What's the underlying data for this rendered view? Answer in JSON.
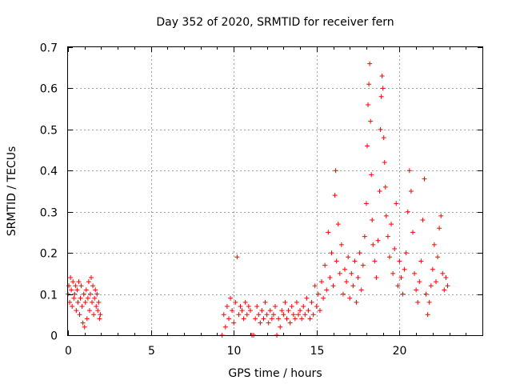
{
  "chart_data": {
    "type": "scatter",
    "title": "Day 352 of 2020, SRMTID for receiver fern",
    "xlabel": "GPS time / hours",
    "ylabel": "SRMTID / TECUs",
    "xlim": [
      0,
      25
    ],
    "ylim": [
      0,
      0.7
    ],
    "xticks": [
      "0",
      "5",
      "10",
      "15",
      "20"
    ],
    "xtick_values": [
      0,
      5,
      10,
      15,
      20
    ],
    "yticks": [
      "0",
      "0.1",
      "0.2",
      "0.3",
      "0.4",
      "0.5",
      "0.6",
      "0.7"
    ],
    "ytick_values": [
      0,
      0.1,
      0.2,
      0.3,
      0.4,
      0.5,
      0.6,
      0.7
    ],
    "grid": true,
    "marker": "+",
    "series": [
      {
        "name": "SRMTID",
        "color": "#ff0000",
        "points": [
          [
            0.0,
            0.1
          ],
          [
            0.05,
            0.12
          ],
          [
            0.1,
            0.08
          ],
          [
            0.15,
            0.14
          ],
          [
            0.2,
            0.11
          ],
          [
            0.25,
            0.07
          ],
          [
            0.3,
            0.13
          ],
          [
            0.35,
            0.09
          ],
          [
            0.4,
            0.1
          ],
          [
            0.45,
            0.12
          ],
          [
            0.5,
            0.06
          ],
          [
            0.55,
            0.11
          ],
          [
            0.6,
            0.08
          ],
          [
            0.65,
            0.13
          ],
          [
            0.7,
            0.05
          ],
          [
            0.75,
            0.09
          ],
          [
            0.8,
            0.12
          ],
          [
            0.85,
            0.07
          ],
          [
            0.9,
            0.03
          ],
          [
            0.95,
            0.1
          ],
          [
            1.0,
            0.02
          ],
          [
            1.05,
            0.08
          ],
          [
            1.1,
            0.11
          ],
          [
            1.15,
            0.04
          ],
          [
            1.2,
            0.09
          ],
          [
            1.25,
            0.13
          ],
          [
            1.3,
            0.06
          ],
          [
            1.35,
            0.1
          ],
          [
            1.4,
            0.14
          ],
          [
            1.45,
            0.08
          ],
          [
            1.5,
            0.12
          ],
          [
            1.55,
            0.05
          ],
          [
            1.6,
            0.09
          ],
          [
            1.65,
            0.11
          ],
          [
            1.7,
            0.07
          ],
          [
            1.75,
            0.1
          ],
          [
            1.8,
            0.06
          ],
          [
            1.85,
            0.08
          ],
          [
            1.9,
            0.04
          ],
          [
            1.95,
            0.05
          ],
          [
            9.3,
            0.0
          ],
          [
            9.4,
            0.05
          ],
          [
            9.5,
            0.02
          ],
          [
            9.6,
            0.07
          ],
          [
            9.7,
            0.04
          ],
          [
            9.8,
            0.09
          ],
          [
            9.9,
            0.06
          ],
          [
            10.0,
            0.03
          ],
          [
            10.1,
            0.08
          ],
          [
            10.2,
            0.19
          ],
          [
            10.3,
            0.05
          ],
          [
            10.4,
            0.07
          ],
          [
            10.5,
            0.06
          ],
          [
            10.6,
            0.04
          ],
          [
            10.7,
            0.08
          ],
          [
            10.8,
            0.05
          ],
          [
            10.9,
            0.07
          ],
          [
            11.0,
            0.06
          ],
          [
            11.1,
            0.0
          ],
          [
            11.2,
            0.0
          ],
          [
            11.3,
            0.04
          ],
          [
            11.4,
            0.07
          ],
          [
            11.5,
            0.05
          ],
          [
            11.6,
            0.03
          ],
          [
            11.7,
            0.06
          ],
          [
            11.8,
            0.04
          ],
          [
            11.9,
            0.08
          ],
          [
            12.0,
            0.05
          ],
          [
            12.1,
            0.03
          ],
          [
            12.2,
            0.06
          ],
          [
            12.3,
            0.04
          ],
          [
            12.4,
            0.05
          ],
          [
            12.5,
            0.07
          ],
          [
            12.6,
            0.0
          ],
          [
            12.7,
            0.04
          ],
          [
            12.8,
            0.02
          ],
          [
            12.9,
            0.06
          ],
          [
            13.0,
            0.05
          ],
          [
            13.1,
            0.08
          ],
          [
            13.2,
            0.04
          ],
          [
            13.3,
            0.06
          ],
          [
            13.4,
            0.03
          ],
          [
            13.5,
            0.07
          ],
          [
            13.6,
            0.05
          ],
          [
            13.7,
            0.04
          ],
          [
            13.8,
            0.08
          ],
          [
            13.9,
            0.05
          ],
          [
            14.0,
            0.06
          ],
          [
            14.1,
            0.04
          ],
          [
            14.2,
            0.07
          ],
          [
            14.3,
            0.05
          ],
          [
            14.4,
            0.09
          ],
          [
            14.5,
            0.06
          ],
          [
            14.6,
            0.04
          ],
          [
            14.7,
            0.08
          ],
          [
            14.8,
            0.05
          ],
          [
            14.9,
            0.12
          ],
          [
            15.0,
            0.07
          ],
          [
            15.1,
            0.1
          ],
          [
            15.2,
            0.06
          ],
          [
            15.3,
            0.13
          ],
          [
            15.4,
            0.09
          ],
          [
            15.5,
            0.17
          ],
          [
            15.6,
            0.11
          ],
          [
            15.7,
            0.25
          ],
          [
            15.8,
            0.14
          ],
          [
            15.9,
            0.2
          ],
          [
            16.0,
            0.12
          ],
          [
            16.1,
            0.34
          ],
          [
            16.15,
            0.4
          ],
          [
            16.2,
            0.18
          ],
          [
            16.3,
            0.27
          ],
          [
            16.4,
            0.15
          ],
          [
            16.5,
            0.22
          ],
          [
            16.6,
            0.1
          ],
          [
            16.7,
            0.16
          ],
          [
            16.8,
            0.13
          ],
          [
            16.9,
            0.19
          ],
          [
            17.0,
            0.09
          ],
          [
            17.1,
            0.15
          ],
          [
            17.2,
            0.12
          ],
          [
            17.3,
            0.18
          ],
          [
            17.4,
            0.08
          ],
          [
            17.5,
            0.14
          ],
          [
            17.6,
            0.2
          ],
          [
            17.7,
            0.11
          ],
          [
            17.8,
            0.17
          ],
          [
            17.9,
            0.24
          ],
          [
            18.0,
            0.32
          ],
          [
            18.05,
            0.46
          ],
          [
            18.1,
            0.56
          ],
          [
            18.15,
            0.61
          ],
          [
            18.2,
            0.66
          ],
          [
            18.25,
            0.52
          ],
          [
            18.3,
            0.39
          ],
          [
            18.35,
            0.28
          ],
          [
            18.4,
            0.22
          ],
          [
            18.5,
            0.18
          ],
          [
            18.6,
            0.14
          ],
          [
            18.7,
            0.23
          ],
          [
            18.8,
            0.35
          ],
          [
            18.85,
            0.5
          ],
          [
            18.9,
            0.58
          ],
          [
            18.95,
            0.63
          ],
          [
            19.0,
            0.6
          ],
          [
            19.05,
            0.48
          ],
          [
            19.1,
            0.42
          ],
          [
            19.15,
            0.36
          ],
          [
            19.2,
            0.29
          ],
          [
            19.3,
            0.24
          ],
          [
            19.4,
            0.19
          ],
          [
            19.5,
            0.27
          ],
          [
            19.6,
            0.15
          ],
          [
            19.7,
            0.21
          ],
          [
            19.8,
            0.32
          ],
          [
            19.9,
            0.12
          ],
          [
            20.0,
            0.18
          ],
          [
            20.1,
            0.14
          ],
          [
            20.2,
            0.1
          ],
          [
            20.3,
            0.16
          ],
          [
            20.4,
            0.2
          ],
          [
            20.5,
            0.3
          ],
          [
            20.6,
            0.4
          ],
          [
            20.7,
            0.35
          ],
          [
            20.8,
            0.25
          ],
          [
            20.9,
            0.15
          ],
          [
            21.0,
            0.11
          ],
          [
            21.1,
            0.08
          ],
          [
            21.2,
            0.13
          ],
          [
            21.3,
            0.18
          ],
          [
            21.4,
            0.28
          ],
          [
            21.5,
            0.38
          ],
          [
            21.6,
            0.1
          ],
          [
            21.7,
            0.05
          ],
          [
            21.8,
            0.08
          ],
          [
            21.9,
            0.12
          ],
          [
            22.0,
            0.16
          ],
          [
            22.1,
            0.22
          ],
          [
            22.2,
            0.13
          ],
          [
            22.3,
            0.19
          ],
          [
            22.4,
            0.26
          ],
          [
            22.5,
            0.29
          ],
          [
            22.6,
            0.15
          ],
          [
            22.7,
            0.11
          ],
          [
            22.8,
            0.14
          ],
          [
            22.9,
            0.12
          ]
        ]
      }
    ]
  }
}
